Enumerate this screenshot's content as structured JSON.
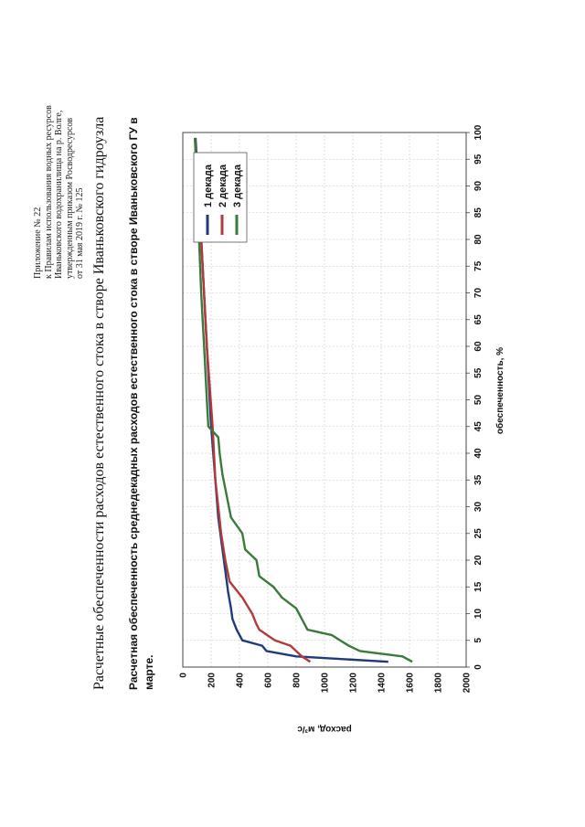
{
  "header": {
    "lines": [
      "Приложение № 22",
      "к Правилам использования водных ресурсов",
      "Иваньковского водохранилища на р. Волге,",
      "утвержденным приказом Росводресурсов",
      "от 31 мая 2019 г. № 125"
    ]
  },
  "page_title": "Расчетные обеспеченности расходов естественного стока в створе Иваньковского гидроузла",
  "chart_data": {
    "type": "line",
    "title": "Расчетная обеспеченность среднедекадных расходов естественного стока в створе Иваньковского ГУ в марте.",
    "xlabel": "обеспеченность, %",
    "ylabel": "расход, м³/с",
    "xlim": [
      0,
      100
    ],
    "ylim": [
      0,
      2000
    ],
    "y_inverted": true,
    "x_ticks": [
      "0",
      "5",
      "10",
      "15",
      "20",
      "25",
      "30",
      "35",
      "40",
      "45",
      "50",
      "55",
      "60",
      "65",
      "70",
      "75",
      "80",
      "85",
      "90",
      "95",
      "100"
    ],
    "y_ticks": [
      "0",
      "200",
      "400",
      "600",
      "800",
      "1000",
      "1200",
      "1400",
      "1600",
      "1800",
      "2000"
    ],
    "grid": true,
    "legend_position": "top-right",
    "series": [
      {
        "name": "1 декада",
        "color": "#1f3b7a",
        "x": [
          1,
          2,
          3,
          4,
          5,
          7,
          9,
          11,
          14,
          18,
          22,
          28,
          35,
          45,
          60,
          75,
          90,
          99
        ],
        "y": [
          1450,
          800,
          590,
          560,
          420,
          380,
          350,
          340,
          320,
          300,
          280,
          250,
          230,
          200,
          170,
          140,
          110,
          90
        ]
      },
      {
        "name": "2 декада",
        "color": "#b23a3a",
        "x": [
          1,
          2,
          4,
          5,
          7,
          8,
          10,
          13,
          16,
          20,
          25,
          30,
          35,
          45,
          60,
          75,
          90,
          99
        ],
        "y": [
          900,
          840,
          760,
          650,
          540,
          520,
          490,
          420,
          330,
          300,
          270,
          250,
          230,
          210,
          170,
          140,
          110,
          85
        ]
      },
      {
        "name": "3 декада",
        "color": "#3a7a3a",
        "x": [
          1,
          2,
          3,
          4,
          6,
          7,
          9,
          11,
          13,
          15,
          17,
          20,
          22,
          25,
          28,
          32,
          36,
          40,
          43,
          45,
          50,
          55,
          60,
          70,
          80,
          90,
          99
        ],
        "y": [
          1620,
          1550,
          1250,
          1170,
          1050,
          880,
          840,
          800,
          700,
          640,
          540,
          520,
          440,
          420,
          340,
          310,
          280,
          260,
          250,
          180,
          170,
          160,
          150,
          130,
          115,
          100,
          85
        ]
      }
    ]
  }
}
